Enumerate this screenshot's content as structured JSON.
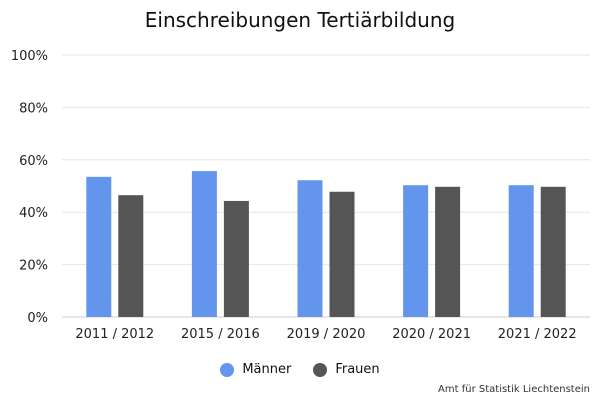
{
  "chart_data": {
    "type": "bar",
    "title": "Einschreibungen Tertiärbildung",
    "categories": [
      "2011 / 2012",
      "2015 / 2016",
      "2019 / 2020",
      "2020 / 2021",
      "2021 / 2022"
    ],
    "series": [
      {
        "name": "Männer",
        "values": [
          53.5,
          55.7,
          52.2,
          50.3,
          50.3
        ],
        "color": "#6495ED"
      },
      {
        "name": "Frauen",
        "values": [
          46.5,
          44.3,
          47.8,
          49.7,
          49.7
        ],
        "color": "#555555"
      }
    ],
    "ylim": [
      0,
      100
    ],
    "yticks": [
      "0%",
      "20%",
      "40%",
      "60%",
      "80%",
      "100%"
    ],
    "grid": true,
    "legend": "bottom-center",
    "credit": "Amt für Statistik Liechtenstein"
  }
}
